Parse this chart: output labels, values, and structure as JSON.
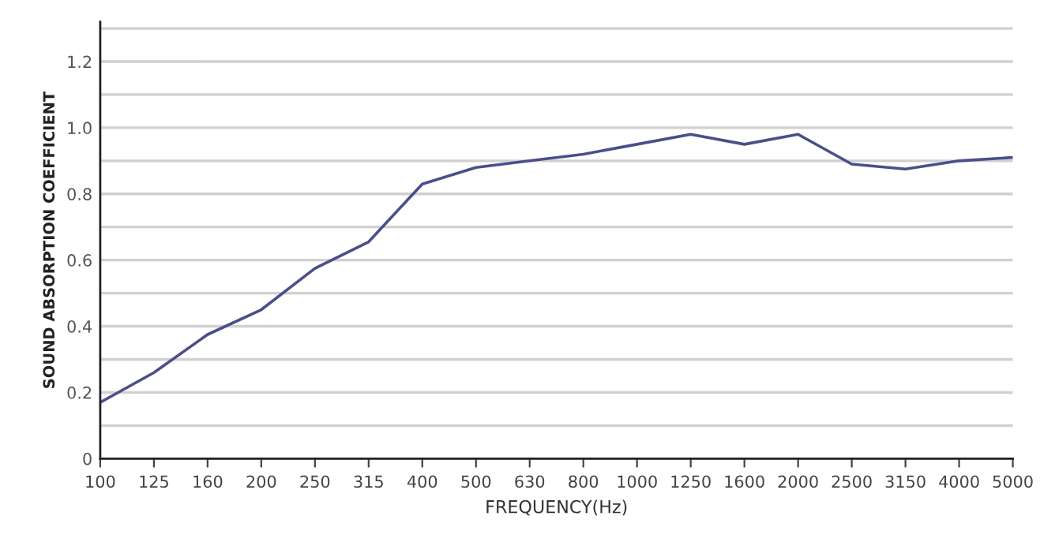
{
  "chart_data": {
    "type": "line",
    "xlabel": "FREQUENCY(Hz)",
    "ylabel": "SOUND ABSORPTION COEFFICIENT",
    "categories": [
      "100",
      "125",
      "160",
      "200",
      "250",
      "315",
      "400",
      "500",
      "630",
      "800",
      "1000",
      "1250",
      "1600",
      "2000",
      "2500",
      "3150",
      "4000",
      "5000"
    ],
    "series": [
      {
        "color": "#4a4f8a",
        "values": [
          0.17,
          0.26,
          0.375,
          0.45,
          0.575,
          0.655,
          0.83,
          0.88,
          0.9,
          0.92,
          0.95,
          0.98,
          0.95,
          0.98,
          0.89,
          0.875,
          0.9,
          0.91
        ]
      }
    ],
    "ylim": [
      0,
      1.32
    ],
    "yticks": [
      0,
      {
        "value": 0.1,
        "label": null
      },
      {
        "value": 0.2,
        "label": "0.2"
      },
      {
        "value": 0.3,
        "label": null
      },
      {
        "value": 0.4,
        "label": "0.4"
      },
      {
        "value": 0.5,
        "label": null
      },
      {
        "value": 0.6,
        "label": "0.6"
      },
      {
        "value": 0.7,
        "label": null
      },
      {
        "value": 0.8,
        "label": "0.8"
      },
      {
        "value": 0.9,
        "label": null
      },
      {
        "value": 1.0,
        "label": "1.0"
      },
      {
        "value": 1.1,
        "label": null
      },
      {
        "value": 1.2,
        "label": "1.2"
      },
      {
        "value": 1.3,
        "label": null
      }
    ],
    "grid": "y",
    "marker": "none",
    "line_style": "solid"
  }
}
